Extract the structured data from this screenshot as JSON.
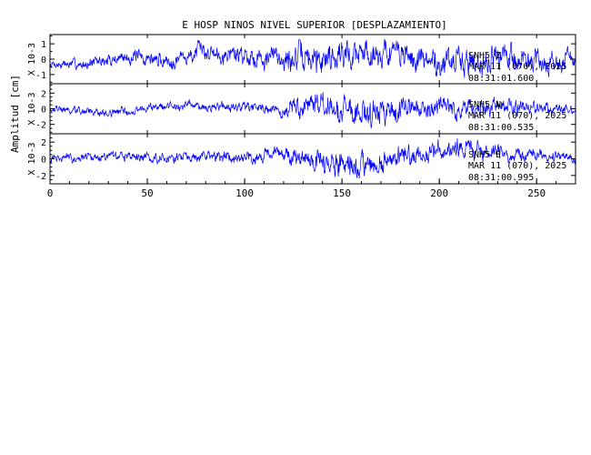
{
  "title": "E HOSP NINOS NIVEL SUPERIOR [DESPLAZAMIENTO]",
  "ylabel": "Amplitud [cm]",
  "colors": {
    "trace": "#0000ff",
    "axes": "#000000"
  },
  "chart_data": {
    "type": "line",
    "title": "E HOSP NINOS NIVEL SUPERIOR [DESPLAZAMIENTO]",
    "ylabel": "Amplitud [cm]",
    "xlim": [
      0,
      270
    ],
    "x_ticks": [
      0,
      50,
      100,
      150,
      200,
      250
    ],
    "panels": [
      {
        "station": "SNH5",
        "component": "Z",
        "date": "MAR 11 (070), 2025",
        "time": "08:31:01.600",
        "scale": "X 10-3",
        "ylim": [
          -1.6,
          1.6
        ],
        "y_ticks": [
          -1,
          0,
          1
        ],
        "seed": 7,
        "envelope": [
          [
            0,
            0.35
          ],
          [
            30,
            0.5
          ],
          [
            60,
            0.6
          ],
          [
            90,
            0.75
          ],
          [
            115,
            0.9
          ],
          [
            140,
            1.2
          ],
          [
            160,
            1.15
          ],
          [
            190,
            1.1
          ],
          [
            215,
            1.2
          ],
          [
            240,
            1.0
          ],
          [
            270,
            0.8
          ]
        ],
        "drift": [
          [
            0,
            -0.4
          ],
          [
            20,
            -0.3
          ],
          [
            40,
            0.2
          ],
          [
            60,
            -0.1
          ],
          [
            80,
            0.5
          ],
          [
            100,
            0.3
          ],
          [
            120,
            0.0
          ],
          [
            150,
            0.3
          ],
          [
            175,
            0.5
          ],
          [
            200,
            -0.3
          ],
          [
            230,
            0.1
          ],
          [
            260,
            -0.2
          ],
          [
            270,
            0.1
          ]
        ]
      },
      {
        "station": "SNH5",
        "component": "N",
        "date": "MAR 11 (070), 2025",
        "time": "08:31:00.535",
        "scale": "X 10-3",
        "ylim": [
          -3.2,
          3.2
        ],
        "y_ticks": [
          -2,
          0,
          2
        ],
        "seed": 19,
        "envelope": [
          [
            0,
            0.6
          ],
          [
            40,
            0.7
          ],
          [
            80,
            0.7
          ],
          [
            110,
            0.9
          ],
          [
            120,
            1.4
          ],
          [
            145,
            2.2
          ],
          [
            155,
            2.6
          ],
          [
            175,
            2.0
          ],
          [
            205,
            1.5
          ],
          [
            240,
            1.2
          ],
          [
            270,
            0.8
          ]
        ],
        "drift": [
          [
            0,
            0.0
          ],
          [
            30,
            -0.5
          ],
          [
            60,
            0.4
          ],
          [
            90,
            0.2
          ],
          [
            120,
            -0.2
          ],
          [
            160,
            0.1
          ],
          [
            200,
            -0.3
          ],
          [
            240,
            0.2
          ],
          [
            270,
            0.0
          ]
        ]
      },
      {
        "station": "SNH5",
        "component": "E",
        "date": "MAR 11 (070), 2025",
        "time": "08:31:00.995",
        "scale": "X 10-3",
        "ylim": [
          -3.0,
          3.0
        ],
        "y_ticks": [
          -2,
          0,
          2
        ],
        "seed": 31,
        "envelope": [
          [
            0,
            0.6
          ],
          [
            40,
            0.7
          ],
          [
            80,
            0.8
          ],
          [
            115,
            1.0
          ],
          [
            125,
            1.4
          ],
          [
            150,
            2.0
          ],
          [
            165,
            1.8
          ],
          [
            190,
            1.3
          ],
          [
            215,
            1.5
          ],
          [
            240,
            1.0
          ],
          [
            270,
            0.7
          ]
        ],
        "drift": [
          [
            0,
            0.0
          ],
          [
            30,
            0.3
          ],
          [
            60,
            0.2
          ],
          [
            90,
            0.3
          ],
          [
            120,
            0.4
          ],
          [
            140,
            -0.3
          ],
          [
            160,
            -0.9
          ],
          [
            185,
            0.3
          ],
          [
            210,
            1.2
          ],
          [
            240,
            0.4
          ],
          [
            270,
            0.2
          ]
        ]
      }
    ]
  }
}
